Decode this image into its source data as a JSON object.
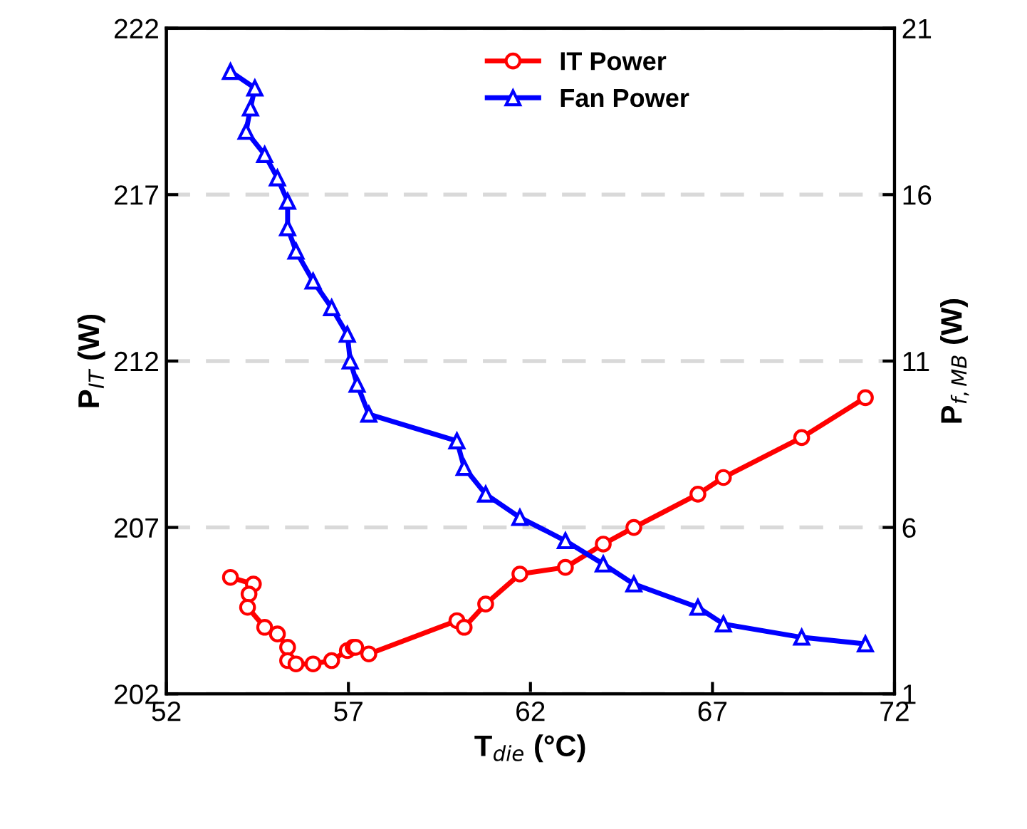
{
  "chart_data": {
    "type": "line",
    "xlabel": "T$_{die}$ (°C)",
    "ylabel": "P$_{IT}$ (W)",
    "y2label": "P$_{f,MB}$ (W)",
    "xlim": [
      52,
      72
    ],
    "xticks": [
      52,
      57,
      62,
      67,
      72
    ],
    "ylim": [
      202,
      222
    ],
    "yticks": [
      202,
      207,
      212,
      217,
      222
    ],
    "y2lim": [
      1,
      21
    ],
    "y2ticks": [
      1,
      6,
      11,
      16,
      21
    ],
    "grid": "y",
    "legend": "top right",
    "line_style": "solid",
    "series": [
      {
        "name": "IT Power",
        "color": "#ff0000",
        "marker": "circle",
        "x": [
          53.76,
          54.39,
          54.27,
          54.23,
          54.7,
          55.05,
          55.33,
          55.33,
          55.56,
          56.03,
          56.54,
          56.97,
          57.13,
          57.2,
          57.56,
          59.98,
          60.18,
          60.77,
          61.71,
          62.96,
          64.0,
          64.84,
          66.6,
          67.3,
          69.45,
          71.2
        ],
        "values": [
          205.5,
          205.3,
          205.0,
          204.6,
          204.0,
          203.8,
          203.4,
          203.0,
          202.9,
          202.9,
          203.0,
          203.3,
          203.4,
          203.4,
          203.2,
          204.2,
          204.0,
          204.7,
          205.6,
          205.8,
          206.5,
          207.0,
          208.0,
          208.5,
          209.7,
          210.9
        ]
      },
      {
        "name": "Fan Power",
        "color": "#0000ff",
        "marker": "triangle",
        "axis": "y2",
        "x": [
          53.76,
          54.43,
          54.31,
          54.19,
          54.7,
          55.05,
          55.33,
          55.33,
          55.56,
          56.03,
          56.54,
          56.97,
          57.05,
          57.24,
          57.56,
          59.98,
          60.18,
          60.77,
          61.71,
          62.96,
          64.0,
          64.84,
          66.6,
          67.3,
          69.45,
          71.2
        ],
        "values": [
          19.7,
          19.2,
          18.6,
          17.9,
          17.2,
          16.5,
          15.8,
          15.0,
          14.3,
          13.4,
          12.6,
          11.8,
          11.0,
          10.3,
          9.4,
          8.6,
          7.8,
          7.0,
          6.3,
          5.6,
          4.9,
          4.3,
          3.6,
          3.1,
          2.7,
          2.5
        ]
      }
    ]
  }
}
